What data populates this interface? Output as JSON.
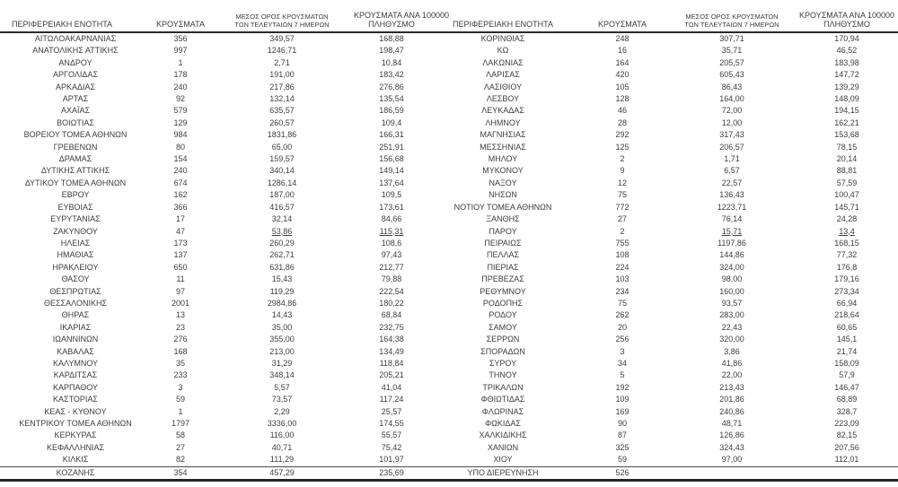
{
  "columns": {
    "region": "ΠΕΡΙΦΕΡΕΙΑΚΗ ΕΝΟΤΗΤΑ",
    "cases": "ΚΡΟΥΣΜΑΤΑ",
    "avg7_line1": "ΜΕΣΟΣ ΟΡΟΣ ΚΡΟΥΣΜΑΤΩΝ",
    "avg7_line2": "ΤΩΝ ΤΕΛΕΥΤΑΙΩΝ 7 ΗΜΕΡΩΝ",
    "per100k_line1": "ΚΡΟΥΣΜΑΤΑ ΑΝΑ 100000",
    "per100k_line2": "ΠΛΗΘΥΣΜΟ"
  },
  "left_rows": [
    [
      "ΑΙΤΩΛΟΑΚΑΡΝΑΝΙΑΣ",
      "356",
      "349,57",
      "168,88"
    ],
    [
      "ΑΝΑΤΟΛΙΚΗΣ ΑΤΤΙΚΗΣ",
      "997",
      "1246,71",
      "198,47"
    ],
    [
      "ΑΝΔΡΟΥ",
      "1",
      "2,71",
      "10,84"
    ],
    [
      "ΑΡΓΟΛΙΔΑΣ",
      "178",
      "191,00",
      "183,42"
    ],
    [
      "ΑΡΚΑΔΙΑΣ",
      "240",
      "217,86",
      "276,86"
    ],
    [
      "ΑΡΤΑΣ",
      "92",
      "132,14",
      "135,54"
    ],
    [
      "ΑΧΑΪΑΣ",
      "579",
      "635,57",
      "186,59"
    ],
    [
      "ΒΟΙΩΤΙΑΣ",
      "129",
      "260,57",
      "109,4"
    ],
    [
      "ΒΟΡΕΙΟΥ ΤΟΜΕΑ ΑΘΗΝΩΝ",
      "984",
      "1831,86",
      "166,31"
    ],
    [
      "ΓΡΕΒΕΝΩΝ",
      "80",
      "65,00",
      "251,91"
    ],
    [
      "ΔΡΑΜΑΣ",
      "154",
      "159,57",
      "156,68"
    ],
    [
      "ΔΥΤΙΚΗΣ ΑΤΤΙΚΗΣ",
      "240",
      "340,14",
      "149,14"
    ],
    [
      "ΔΥΤΙΚΟΥ ΤΟΜΕΑ ΑΘΗΝΩΝ",
      "674",
      "1286,14",
      "137,64"
    ],
    [
      "ΕΒΡΟΥ",
      "162",
      "187,00",
      "109,5"
    ],
    [
      "ΕΥΒΟΙΑΣ",
      "366",
      "416,57",
      "173,61"
    ],
    [
      "ΕΥΡΥΤΑΝΙΑΣ",
      "17",
      "32,14",
      "84,66"
    ],
    [
      "ΖΑΚΥΝΘΟΥ",
      "47",
      "53,86",
      "115,31"
    ],
    [
      "ΗΛΕΙΑΣ",
      "173",
      "260,29",
      "108,6"
    ],
    [
      "ΗΜΑΘΙΑΣ",
      "137",
      "262,71",
      "97,43"
    ],
    [
      "ΗΡΑΚΛΕΙΟΥ",
      "650",
      "631,86",
      "212,77"
    ],
    [
      "ΘΑΣΟΥ",
      "11",
      "15,43",
      "79,88"
    ],
    [
      "ΘΕΣΠΡΩΤΙΑΣ",
      "97",
      "119,29",
      "222,54"
    ],
    [
      "ΘΕΣΣΑΛΟΝΙΚΗΣ",
      "2001",
      "2984,86",
      "180,22"
    ],
    [
      "ΘΗΡΑΣ",
      "13",
      "14,43",
      "68,84"
    ],
    [
      "ΙΚΑΡΙΑΣ",
      "23",
      "35,00",
      "232,75"
    ],
    [
      "ΙΩΑΝΝΙΝΩΝ",
      "276",
      "355,00",
      "164,38"
    ],
    [
      "ΚΑΒΑΛΑΣ",
      "168",
      "213,00",
      "134,49"
    ],
    [
      "ΚΑΛΥΜΝΟΥ",
      "35",
      "31,29",
      "118,84"
    ],
    [
      "ΚΑΡΔΙΤΣΑΣ",
      "233",
      "348,14",
      "205,21"
    ],
    [
      "ΚΑΡΠΑΘΟΥ",
      "3",
      "5,57",
      "41,04"
    ],
    [
      "ΚΑΣΤΟΡΙΑΣ",
      "59",
      "73,57",
      "117,24"
    ],
    [
      "ΚΕΑΣ - ΚΥΘΝΟΥ",
      "1",
      "2,29",
      "25,57"
    ],
    [
      "ΚΕΝΤΡΙΚΟΥ ΤΟΜΕΑ ΑΘΗΝΩΝ",
      "1797",
      "3336,00",
      "174,55"
    ],
    [
      "ΚΕΡΚΥΡΑΣ",
      "58",
      "116,00",
      "55,57"
    ],
    [
      "ΚΕΦΑΛΛΗΝΙΑΣ",
      "27",
      "40,71",
      "75,42"
    ],
    [
      "ΚΙΛΚΙΣ",
      "82",
      "111,29",
      "101,97"
    ],
    [
      "ΚΟΖΑΝΗΣ",
      "354",
      "457,29",
      "235,69"
    ]
  ],
  "right_rows": [
    [
      "ΚΟΡΙΝΘΙΑΣ",
      "248",
      "307,71",
      "170,94"
    ],
    [
      "ΚΩ",
      "16",
      "35,71",
      "46,52"
    ],
    [
      "ΛΑΚΩΝΙΑΣ",
      "164",
      "205,57",
      "183,98"
    ],
    [
      "ΛΑΡΙΣΑΣ",
      "420",
      "605,43",
      "147,72"
    ],
    [
      "ΛΑΣΙΘΙΟΥ",
      "105",
      "86,43",
      "139,29"
    ],
    [
      "ΛΕΣΒΟΥ",
      "128",
      "164,00",
      "148,09"
    ],
    [
      "ΛΕΥΚΑΔΑΣ",
      "46",
      "72,00",
      "194,15"
    ],
    [
      "ΛΗΜΝΟΥ",
      "28",
      "12,00",
      "162,21"
    ],
    [
      "ΜΑΓΝΗΣΙΑΣ",
      "292",
      "317,43",
      "153,68"
    ],
    [
      "ΜΕΣΣΗΝΙΑΣ",
      "125",
      "206,57",
      "78,15"
    ],
    [
      "ΜΗΛΟΥ",
      "2",
      "1,71",
      "20,14"
    ],
    [
      "ΜΥΚΟΝΟΥ",
      "9",
      "6,57",
      "88,81"
    ],
    [
      "ΝΑΞΟΥ",
      "12",
      "22,57",
      "57,59"
    ],
    [
      "ΝΗΣΩΝ",
      "75",
      "136,43",
      "100,47"
    ],
    [
      "ΝΟΤΙΟΥ ΤΟΜΕΑ ΑΘΗΝΩΝ",
      "772",
      "1223,71",
      "145,71"
    ],
    [
      "ΞΑΝΘΗΣ",
      "27",
      "76,14",
      "24,28"
    ],
    [
      "ΠΑΡΟΥ",
      "2",
      "15,71",
      "13,4"
    ],
    [
      "ΠΕΙΡΑΙΩΣ",
      "755",
      "1197,86",
      "168,15"
    ],
    [
      "ΠΕΛΛΑΣ",
      "108",
      "144,86",
      "77,32"
    ],
    [
      "ΠΙΕΡΙΑΣ",
      "224",
      "324,00",
      "176,8"
    ],
    [
      "ΠΡΕΒΕΖΑΣ",
      "103",
      "98,00",
      "179,16"
    ],
    [
      "ΡΕΘΥΜΝΟΥ",
      "234",
      "160,00",
      "273,34"
    ],
    [
      "ΡΟΔΟΠΗΣ",
      "75",
      "93,57",
      "66,94"
    ],
    [
      "ΡΟΔΟΥ",
      "262",
      "283,00",
      "218,64"
    ],
    [
      "ΣΑΜΟΥ",
      "20",
      "22,43",
      "60,65"
    ],
    [
      "ΣΕΡΡΩΝ",
      "256",
      "320,00",
      "145,1"
    ],
    [
      "ΣΠΟΡΑΔΩΝ",
      "3",
      "3,86",
      "21,74"
    ],
    [
      "ΣΥΡΟΥ",
      "34",
      "41,86",
      "158,09"
    ],
    [
      "ΤΗΝΟΥ",
      "5",
      "22,00",
      "57,9"
    ],
    [
      "ΤΡΙΚΑΛΩΝ",
      "192",
      "213,43",
      "146,47"
    ],
    [
      "ΦΘΙΩΤΙΔΑΣ",
      "109",
      "201,86",
      "68,89"
    ],
    [
      "ΦΛΩΡΙΝΑΣ",
      "169",
      "240,86",
      "328,7"
    ],
    [
      "ΦΩΚΙΔΑΣ",
      "90",
      "48,71",
      "223,09"
    ],
    [
      "ΧΑΛΚΙΔΙΚΗΣ",
      "87",
      "126,86",
      "82,15"
    ],
    [
      "ΧΑΝΙΩΝ",
      "325",
      "324,43",
      "207,56"
    ],
    [
      "ΧΙΟΥ",
      "59",
      "97,00",
      "112,01"
    ],
    [
      "ΥΠΟ ΔΙΕΡΕΥΝΗΣΗ",
      "526",
      "",
      ""
    ]
  ],
  "underlined_cells": [
    {
      "side": "left",
      "row": 16,
      "region": "ΖΑΚΥΝΘΟΥ",
      "columns": [
        2,
        3
      ]
    },
    {
      "side": "right",
      "row": 16,
      "region": "ΠΑΡΟΥ",
      "columns": [
        2,
        3
      ]
    }
  ],
  "colors": {
    "text": "#3d3d3d",
    "rule_thick": "#2a2a2a",
    "rule_thin": "#4a4a4a",
    "background": "#ffffff"
  }
}
